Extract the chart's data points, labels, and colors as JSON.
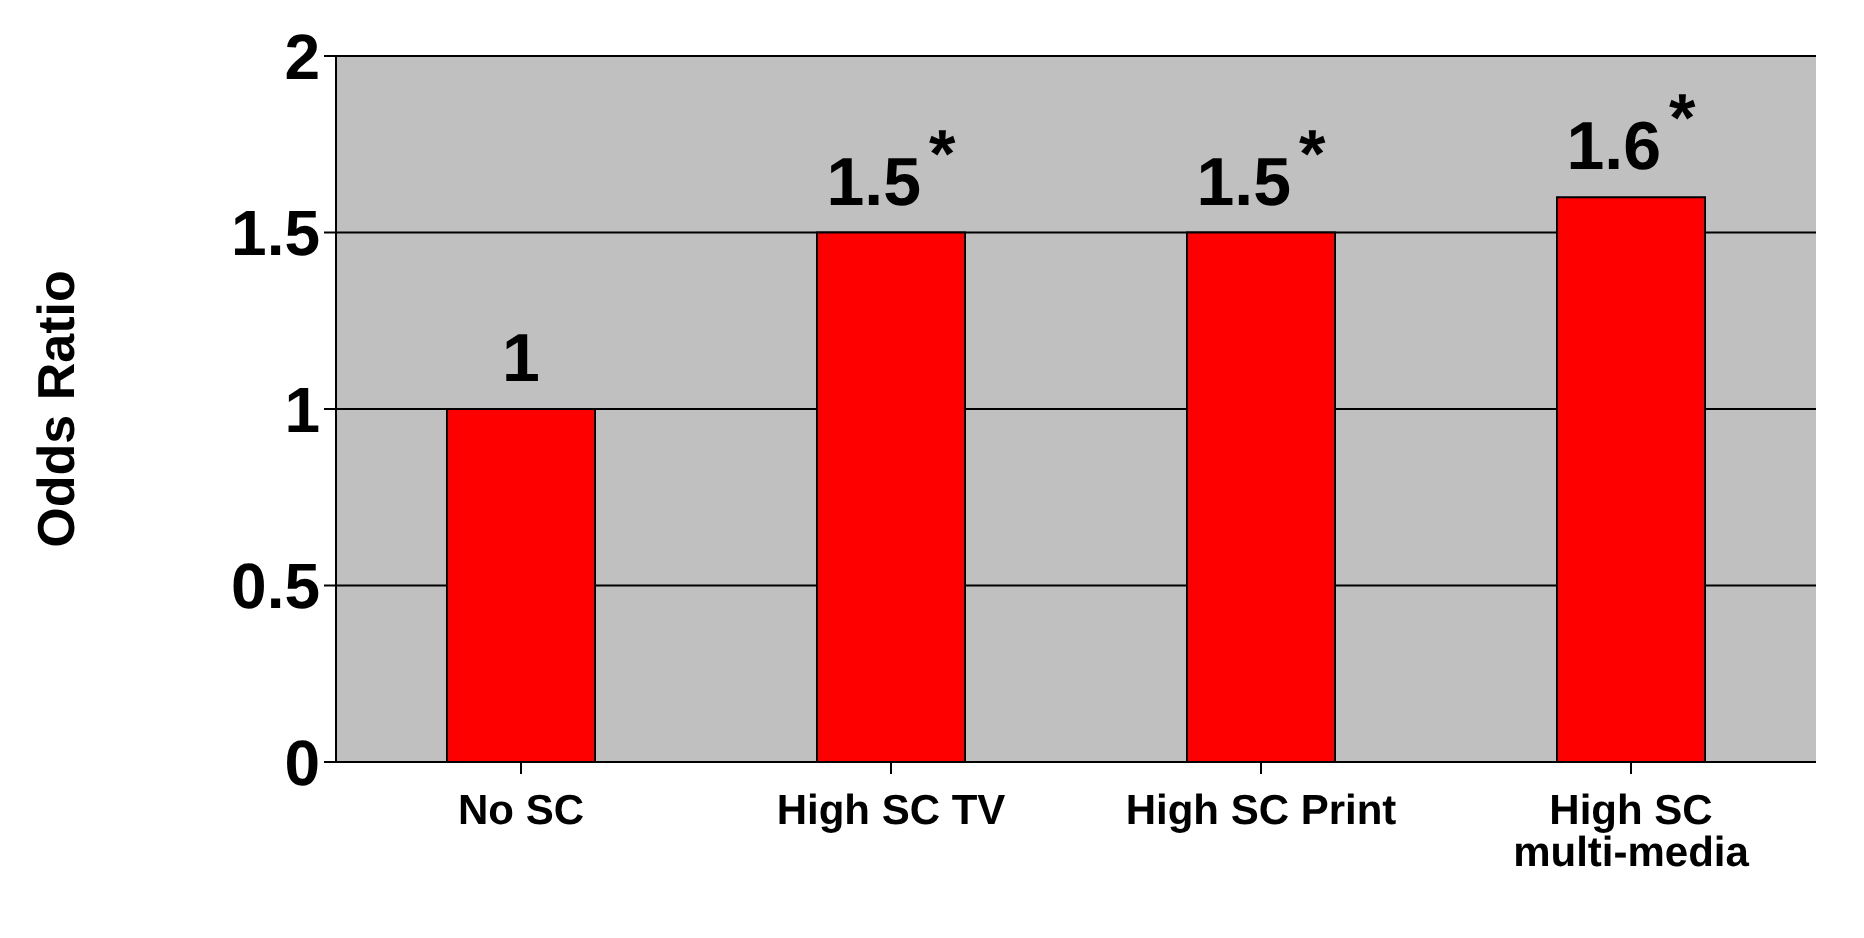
{
  "chart_data": {
    "type": "bar",
    "ylabel": "Odds Ratio",
    "categories": [
      "No SC",
      "High SC TV",
      "High SC Print",
      "High SC multi-media"
    ],
    "values": [
      1,
      1.5,
      1.5,
      1.6
    ],
    "value_labels": [
      "1",
      "1.5$^{*}$",
      "1.5$^{*}$",
      "1.6$^{*}$"
    ],
    "color": "#ff0000",
    "ylim": [
      0,
      2
    ],
    "yticks": [
      0,
      0.5,
      1,
      1.5,
      2
    ],
    "grid": "y"
  }
}
